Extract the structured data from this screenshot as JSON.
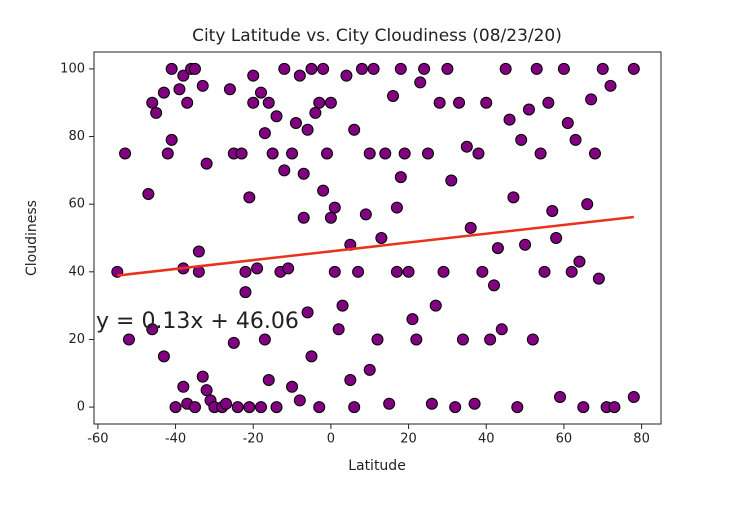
{
  "chart_data": {
    "type": "scatter",
    "title": "City Latitude vs. City Cloudiness (08/23/20)",
    "x_label": "Latitude",
    "y_label": "Cloudiness",
    "xlim": [
      -61,
      85
    ],
    "ylim": [
      -5,
      105
    ],
    "xticks": [
      -60,
      -40,
      -20,
      0,
      20,
      40,
      60,
      80
    ],
    "yticks": [
      0,
      20,
      40,
      60,
      80,
      100
    ],
    "series": [
      {
        "color": "#800080",
        "x": [
          -55,
          -53,
          -52,
          -47,
          -46,
          -46,
          -45,
          -43,
          -43,
          -42,
          -41,
          -41,
          -40,
          -39,
          -38,
          -38,
          -38,
          -37,
          -37,
          -36,
          -35,
          -35,
          -34,
          -34,
          -33,
          -33,
          -32,
          -32,
          -31,
          -30,
          -28,
          -27,
          -26,
          -25,
          -25,
          -24,
          -23,
          -22,
          -22,
          -21,
          -21,
          -20,
          -20,
          -19,
          -18,
          -18,
          -17,
          -17,
          -16,
          -16,
          -15,
          -14,
          -14,
          -13,
          -12,
          -12,
          -11,
          -10,
          -10,
          -9,
          -8,
          -8,
          -7,
          -7,
          -6,
          -6,
          -5,
          -5,
          -4,
          -3,
          -3,
          -2,
          -2,
          -1,
          0,
          0,
          1,
          1,
          2,
          3,
          4,
          5,
          5,
          6,
          6,
          7,
          8,
          9,
          10,
          10,
          11,
          12,
          13,
          14,
          15,
          16,
          17,
          17,
          18,
          18,
          19,
          20,
          21,
          22,
          23,
          24,
          25,
          26,
          27,
          28,
          29,
          30,
          31,
          32,
          33,
          34,
          35,
          36,
          37,
          38,
          39,
          40,
          41,
          42,
          43,
          44,
          45,
          46,
          47,
          48,
          49,
          50,
          51,
          52,
          53,
          54,
          55,
          56,
          57,
          58,
          59,
          60,
          61,
          62,
          63,
          64,
          65,
          66,
          67,
          68,
          69,
          70,
          71,
          72,
          73,
          78,
          78
        ],
        "y": [
          40,
          75,
          20,
          63,
          90,
          23,
          87,
          93,
          15,
          75,
          79,
          100,
          0,
          94,
          98,
          6,
          41,
          90,
          1,
          100,
          100,
          0,
          46,
          40,
          95,
          9,
          72,
          5,
          2,
          0,
          0,
          1,
          94,
          75,
          19,
          0,
          75,
          40,
          34,
          0,
          62,
          98,
          90,
          41,
          0,
          93,
          20,
          81,
          90,
          8,
          75,
          86,
          0,
          40,
          100,
          70,
          41,
          6,
          75,
          84,
          98,
          2,
          56,
          69,
          82,
          28,
          100,
          15,
          87,
          0,
          90,
          64,
          100,
          75,
          56,
          90,
          59,
          40,
          23,
          30,
          98,
          48,
          8,
          82,
          0,
          40,
          100,
          57,
          75,
          11,
          100,
          20,
          50,
          75,
          1,
          92,
          40,
          59,
          68,
          100,
          75,
          40,
          26,
          20,
          96,
          100,
          75,
          1,
          30,
          90,
          40,
          100,
          67,
          0,
          90,
          20,
          77,
          53,
          1,
          75,
          40,
          90,
          20,
          36,
          47,
          23,
          100,
          85,
          62,
          0,
          79,
          48,
          88,
          20,
          100,
          75,
          40,
          90,
          58,
          50,
          3,
          100,
          84,
          40,
          79,
          43,
          0,
          60,
          91,
          75,
          38,
          100,
          0,
          95,
          0,
          100,
          3
        ]
      }
    ],
    "regression": {
      "color": "#e8331c",
      "x": [
        -55,
        78
      ],
      "y": [
        38.9,
        56.2
      ],
      "equation": "y = 0.13x + 46.06",
      "equation_color": "#3a8f25"
    }
  }
}
